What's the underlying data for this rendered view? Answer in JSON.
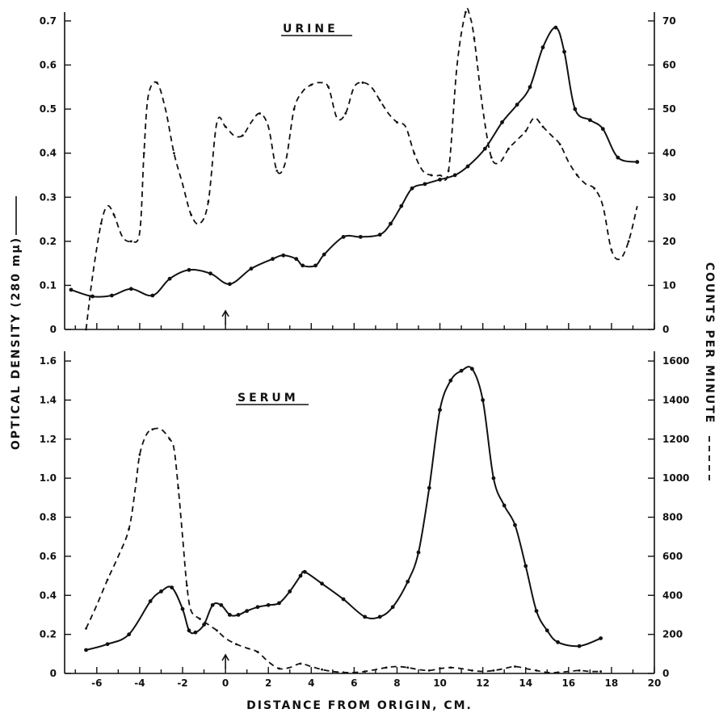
{
  "chart_data": [
    {
      "type": "line",
      "title": "URINE",
      "xlabel": "",
      "ylabel_left": "OPTICAL DENSITY (280 mμ)",
      "ylabel_right": "COUNTS PER MINUTE",
      "xlim": [
        -7.5,
        20
      ],
      "ylim_left": [
        0,
        0.72
      ],
      "ylim_right": [
        0,
        72
      ],
      "yticks_left": [
        "0",
        "0.1",
        "0.2",
        "0.3",
        "0.4",
        "0.5",
        "0.6",
        "0.7"
      ],
      "yticks_right": [
        "0",
        "10",
        "20",
        "30",
        "40",
        "50",
        "60",
        "70"
      ],
      "origin_marker_x": 0,
      "series": [
        {
          "style": "solid",
          "axis": "left",
          "x": [
            -7.2,
            -6.2,
            -5.3,
            -4.4,
            -3.4,
            -2.6,
            -1.7,
            -0.7,
            0.2,
            1.2,
            2.2,
            2.7,
            3.3,
            3.6,
            4.2,
            4.6,
            5.5,
            6.3,
            7.2,
            7.7,
            8.2,
            8.7,
            9.3,
            10.0,
            10.7,
            11.3,
            12.1,
            12.9,
            13.6,
            14.2,
            14.8,
            15.4,
            15.8,
            16.3,
            17.0,
            17.6,
            18.3,
            19.2
          ],
          "y": [
            0.09,
            0.075,
            0.077,
            0.092,
            0.077,
            0.115,
            0.135,
            0.127,
            0.103,
            0.138,
            0.16,
            0.168,
            0.16,
            0.145,
            0.145,
            0.17,
            0.21,
            0.21,
            0.215,
            0.24,
            0.28,
            0.32,
            0.33,
            0.34,
            0.35,
            0.37,
            0.41,
            0.47,
            0.51,
            0.55,
            0.64,
            0.685,
            0.63,
            0.5,
            0.475,
            0.455,
            0.39,
            0.38
          ]
        },
        {
          "style": "dashed",
          "axis": "right",
          "x": [
            -6.5,
            -6.2,
            -5.8,
            -5.5,
            -5.2,
            -4.8,
            -4.4,
            -4.0,
            -3.8,
            -3.6,
            -3.2,
            -2.8,
            -2.4,
            -2.0,
            -1.6,
            -1.2,
            -0.8,
            -0.4,
            0,
            0.4,
            0.8,
            1.2,
            1.6,
            2.0,
            2.4,
            2.8,
            3.2,
            3.6,
            4.0,
            4.4,
            4.8,
            5.2,
            5.6,
            6.0,
            6.4,
            6.8,
            7.2,
            7.6,
            8.0,
            8.4,
            8.8,
            9.2,
            9.6,
            10.0,
            10.4,
            10.8,
            11.2,
            11.4,
            11.6,
            12.0,
            12.4,
            12.8,
            13.2,
            13.6,
            14.0,
            14.4,
            14.8,
            15.2,
            15.6,
            16.0,
            16.4,
            16.8,
            17.2,
            17.6,
            18.0,
            18.4,
            18.8,
            19.2
          ],
          "y": [
            0,
            12,
            24,
            28,
            26,
            21,
            20,
            22,
            40,
            53,
            56,
            50,
            40,
            33,
            26,
            24,
            29,
            47,
            46,
            44,
            44,
            47,
            49,
            46,
            36,
            38,
            50,
            54,
            55.5,
            56,
            55,
            48,
            49,
            55,
            56,
            55,
            52,
            49,
            47,
            46,
            40,
            36,
            35,
            35,
            36,
            60,
            72,
            71,
            66,
            50,
            39,
            38,
            41,
            43,
            45,
            48,
            46,
            44,
            42,
            38,
            35,
            33,
            32,
            28,
            18,
            16,
            20,
            28
          ]
        }
      ]
    },
    {
      "type": "line",
      "title": "SERUM",
      "xlabel": "DISTANCE FROM ORIGIN, CM.",
      "ylabel_left": "OPTICAL DENSITY (280 mμ)",
      "ylabel_right": "COUNTS PER MINUTE",
      "xlim": [
        -7.5,
        20
      ],
      "ylim_left": [
        0,
        1.65
      ],
      "ylim_right": [
        0,
        1650
      ],
      "xticks": [
        "-6",
        "-4",
        "-2",
        "0",
        "2",
        "4",
        "6",
        "8",
        "10",
        "12",
        "14",
        "16",
        "18",
        "20"
      ],
      "yticks_left": [
        "0",
        "0.2",
        "0.4",
        "0.6",
        "0.8",
        "1.0",
        "1.2",
        "1.4",
        "1.6"
      ],
      "yticks_right": [
        "0",
        "200",
        "400",
        "600",
        "800",
        "1000",
        "1200",
        "1400",
        "1600"
      ],
      "origin_marker_x": 0,
      "series": [
        {
          "style": "solid",
          "axis": "left",
          "x": [
            -6.5,
            -5.5,
            -4.5,
            -3.5,
            -3.0,
            -2.5,
            -2.0,
            -1.7,
            -1.4,
            -1.0,
            -0.6,
            -0.2,
            0.2,
            0.6,
            1.0,
            1.5,
            2.0,
            2.5,
            3.0,
            3.5,
            3.7,
            4.5,
            5.5,
            6.5,
            7.2,
            7.8,
            8.5,
            9.0,
            9.5,
            10.0,
            10.5,
            11.0,
            11.5,
            12.0,
            12.5,
            13.0,
            13.5,
            14.0,
            14.5,
            15.0,
            15.5,
            16.5,
            17.5
          ],
          "y": [
            0.12,
            0.15,
            0.2,
            0.37,
            0.42,
            0.44,
            0.33,
            0.22,
            0.21,
            0.25,
            0.35,
            0.35,
            0.3,
            0.3,
            0.32,
            0.34,
            0.35,
            0.36,
            0.42,
            0.5,
            0.52,
            0.46,
            0.38,
            0.29,
            0.29,
            0.34,
            0.47,
            0.62,
            0.95,
            1.35,
            1.5,
            1.55,
            1.56,
            1.4,
            1.0,
            0.86,
            0.76,
            0.55,
            0.32,
            0.22,
            0.16,
            0.14,
            0.18
          ]
        },
        {
          "style": "dashed",
          "axis": "right",
          "x": [
            -6.5,
            -6.0,
            -5.5,
            -5.0,
            -4.5,
            -4.2,
            -4.0,
            -3.7,
            -3.4,
            -3.0,
            -2.6,
            -2.4,
            -2.2,
            -2.0,
            -1.8,
            -1.6,
            -1.2,
            -0.8,
            -0.4,
            0,
            0.5,
            1.0,
            1.5,
            2.0,
            2.5,
            3.0,
            3.5,
            4.0,
            4.5,
            5.0,
            5.5,
            6.0,
            6.5,
            7.0,
            7.5,
            8.0,
            8.5,
            9.0,
            9.5,
            10.0,
            10.5,
            11.0,
            11.5,
            12.0,
            12.5,
            13.0,
            13.5,
            14.0,
            14.5,
            15.0,
            15.5,
            16.0,
            16.5,
            17.0,
            17.5
          ],
          "y": [
            230,
            350,
            480,
            600,
            740,
            950,
            1120,
            1220,
            1250,
            1250,
            1200,
            1150,
            950,
            700,
            450,
            320,
            280,
            250,
            220,
            180,
            150,
            130,
            110,
            60,
            25,
            30,
            50,
            35,
            20,
            10,
            5,
            5,
            10,
            20,
            30,
            35,
            30,
            20,
            15,
            25,
            30,
            25,
            15,
            10,
            15,
            25,
            35,
            25,
            15,
            5,
            5,
            10,
            15,
            10,
            10
          ]
        }
      ]
    }
  ]
}
